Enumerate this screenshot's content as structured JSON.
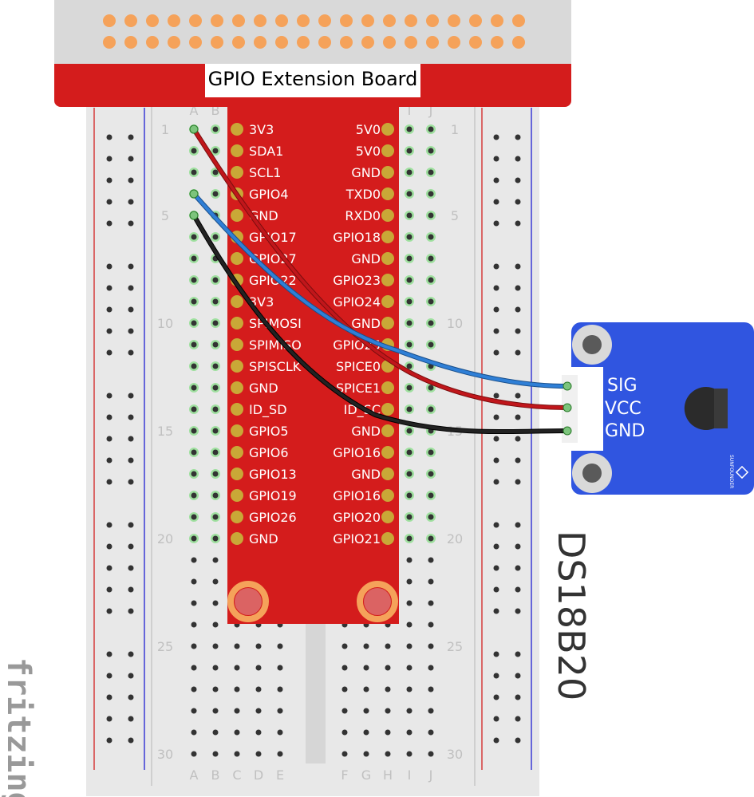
{
  "board": {
    "title": "GPIO Extension Board"
  },
  "breadboard": {
    "columns_left": [
      "A",
      "B",
      "C",
      "D",
      "E"
    ],
    "columns_right": [
      "F",
      "G",
      "H",
      "I",
      "J"
    ],
    "row_numbers": [
      "1",
      "5",
      "10",
      "15",
      "20",
      "25",
      "30"
    ]
  },
  "gpio_pins": {
    "left": [
      "3V3",
      "SDA1",
      "SCL1",
      "GPIO4",
      "GND",
      "GPIO17",
      "GPIO27",
      "GPIO22",
      "3V3",
      "SPIMOSI",
      "SPIMISO",
      "SPISCLK",
      "GND",
      "ID_SD",
      "GPIO5",
      "GPIO6",
      "GPIO13",
      "GPIO19",
      "GPIO26",
      "GND"
    ],
    "right": [
      "5V0",
      "5V0",
      "GND",
      "TXD0",
      "RXD0",
      "GPIO18",
      "GND",
      "GPIO23",
      "GPIO24",
      "GND",
      "GPIO25",
      "SPICE0",
      "SPICE1",
      "ID_SC",
      "GND",
      "GPIO16",
      "GND",
      "GPIO16",
      "GPIO20",
      "GPIO21"
    ]
  },
  "module": {
    "name": "DS18B20",
    "pins": [
      "SIG",
      "VCC",
      "GND"
    ],
    "brand": "SUNFOUNDER"
  },
  "wires": [
    {
      "name": "signal",
      "color": "#2f7fd6"
    },
    {
      "name": "power",
      "color": "#c0161b"
    },
    {
      "name": "ground",
      "color": "#222222"
    }
  ],
  "colors": {
    "board_red": "#d41c1c",
    "header_gray": "#d9d9d9",
    "pin_orange": "#f5a25a",
    "module_blue": "#3055e0",
    "pad_gold": "#c9a837"
  },
  "watermark": "fritzing"
}
